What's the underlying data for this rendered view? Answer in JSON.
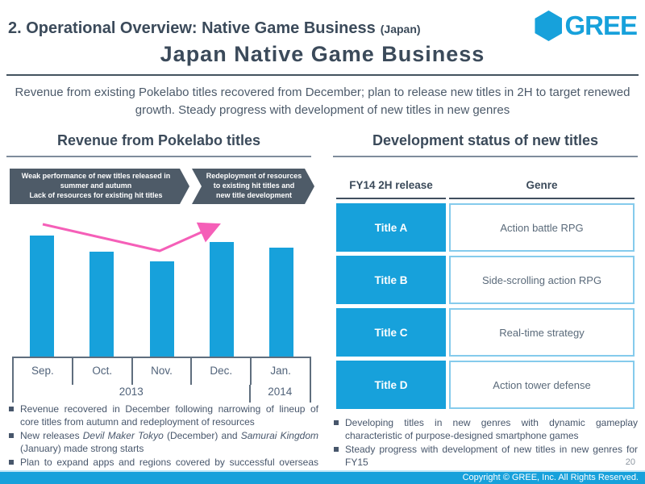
{
  "header": {
    "kicker": "2. Operational Overview: Native Game Business",
    "kicker_suffix": "(Japan)",
    "title": "Japan Native Game Business",
    "logo_text": "GREE"
  },
  "lead": "Revenue from existing Pokelabo titles recovered from December; plan to release new titles in 2H to target renewed growth. Steady progress with development of new titles in new genres",
  "left": {
    "section_title": "Revenue from Pokelabo titles",
    "banner": {
      "cause_line1": "Weak performance of new titles released in summer and autumn",
      "cause_line2": "Lack of resources for existing hit titles",
      "effect": "Redeployment of resources to existing hit titles and new title development"
    },
    "bullets": {
      "b1": "Revenue recovered in December following narrowing of lineup of core titles from autumn and redeployment of resources",
      "b2_pre": "New releases ",
      "b2_em1": "Devil Maker Tokyo",
      "b2_mid": " (December) and ",
      "b2_em2": "Samurai Kingdom",
      "b2_post": " (January) made strong starts",
      "b3": "Plan to expand apps and regions covered by successful overseas licensing business from March"
    }
  },
  "chart_data": {
    "type": "bar",
    "title": "Revenue from Pokelabo titles",
    "categories": [
      "Sep.",
      "Oct.",
      "Nov.",
      "Dec.",
      "Jan."
    ],
    "values": [
      100,
      87,
      79,
      95,
      90
    ],
    "values_note": "relative monthly revenue index estimated from bar heights; no numeric y-axis shown",
    "year_groups": [
      {
        "label": "2013",
        "span": 4
      },
      {
        "label": "2014",
        "span": 1
      }
    ],
    "xlabel": "",
    "ylabel": "",
    "y_axis_shown": false,
    "grid": false,
    "legend": false,
    "bar_color": "#17a1db",
    "annotation": {
      "shape": "v-recovery-arrow",
      "color": "#f55fb8",
      "meaning": "decline from Sep. to Nov. then recovery into Dec./Jan."
    }
  },
  "right": {
    "section_title": "Development status of new titles",
    "table": {
      "col1_header": "FY14 2H release",
      "col2_header": "Genre",
      "rows": [
        {
          "title": "Title A",
          "genre": "Action battle RPG"
        },
        {
          "title": "Title B",
          "genre": "Side-scrolling action RPG"
        },
        {
          "title": "Title C",
          "genre": "Real-time strategy"
        },
        {
          "title": "Title D",
          "genre": "Action tower defense"
        }
      ]
    },
    "bullets": [
      "Developing titles in new genres with dynamic gameplay characteristic of purpose-designed smartphone games",
      "Steady progress with development of new titles in new genres for FY15"
    ]
  },
  "footer": {
    "page_number": "20",
    "copyright": "Copyright © GREE, Inc. All Rights Reserved."
  },
  "colors": {
    "brand_blue": "#17a1db",
    "slate_text": "#3b4a5a",
    "banner_bg": "#4e5b68",
    "pink_arrow": "#f55fb8",
    "axis_line": "#5f6e7e",
    "genre_border": "#85cbec"
  }
}
